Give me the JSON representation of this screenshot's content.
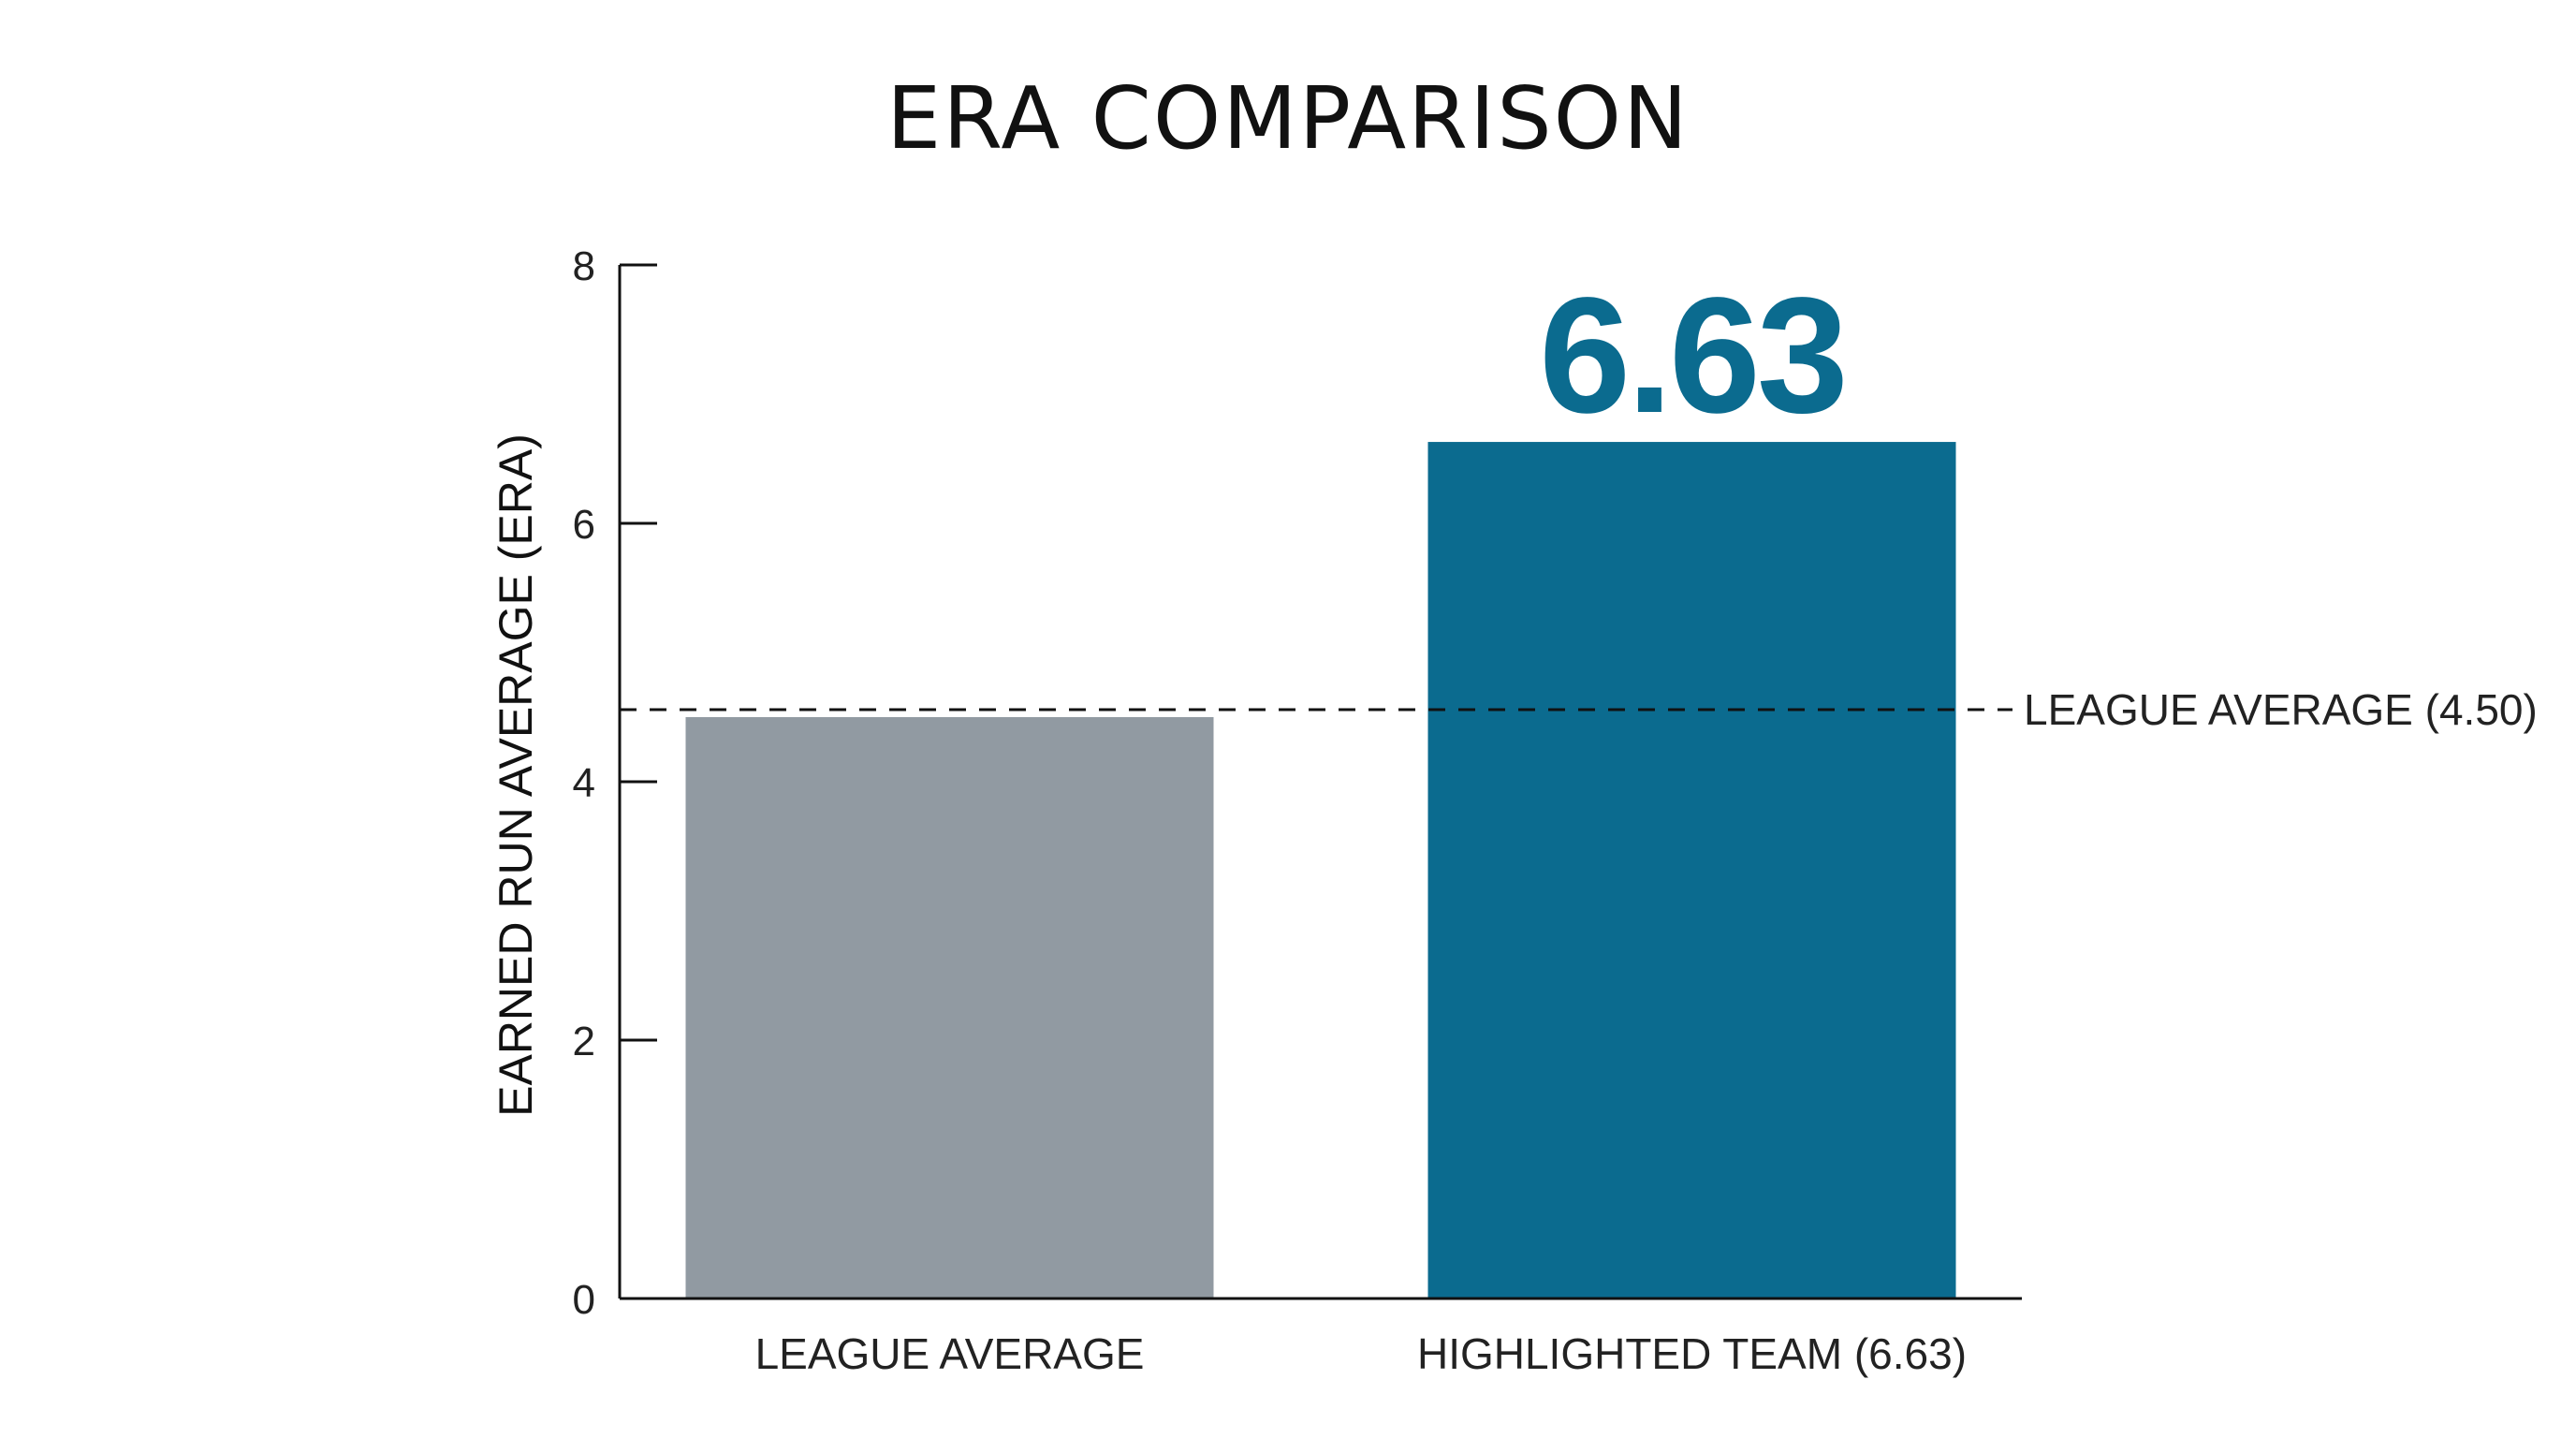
{
  "chart_data": {
    "type": "bar",
    "title": "ERA COMPARISON",
    "ylabel": "EARNED RUN AVERAGE (ERA)",
    "xlabel": "",
    "ylim": [
      0,
      8
    ],
    "yticks": [
      0,
      2,
      4,
      6,
      8
    ],
    "grid": false,
    "legend": "none",
    "categories": [
      "LEAGUE AVERAGE",
      "HIGHLIGHTED TEAM (6.63)"
    ],
    "values": [
      4.5,
      6.63
    ],
    "colors": [
      "#919aa2",
      "#0b6b8f"
    ],
    "data_labels": [
      "",
      "6.63"
    ],
    "data_label_color": "#0b6b8f",
    "reference_line": {
      "value": 4.5,
      "label": "LEAGUE AVERAGE (4.50)",
      "style": "dashed",
      "color": "#111111"
    }
  }
}
